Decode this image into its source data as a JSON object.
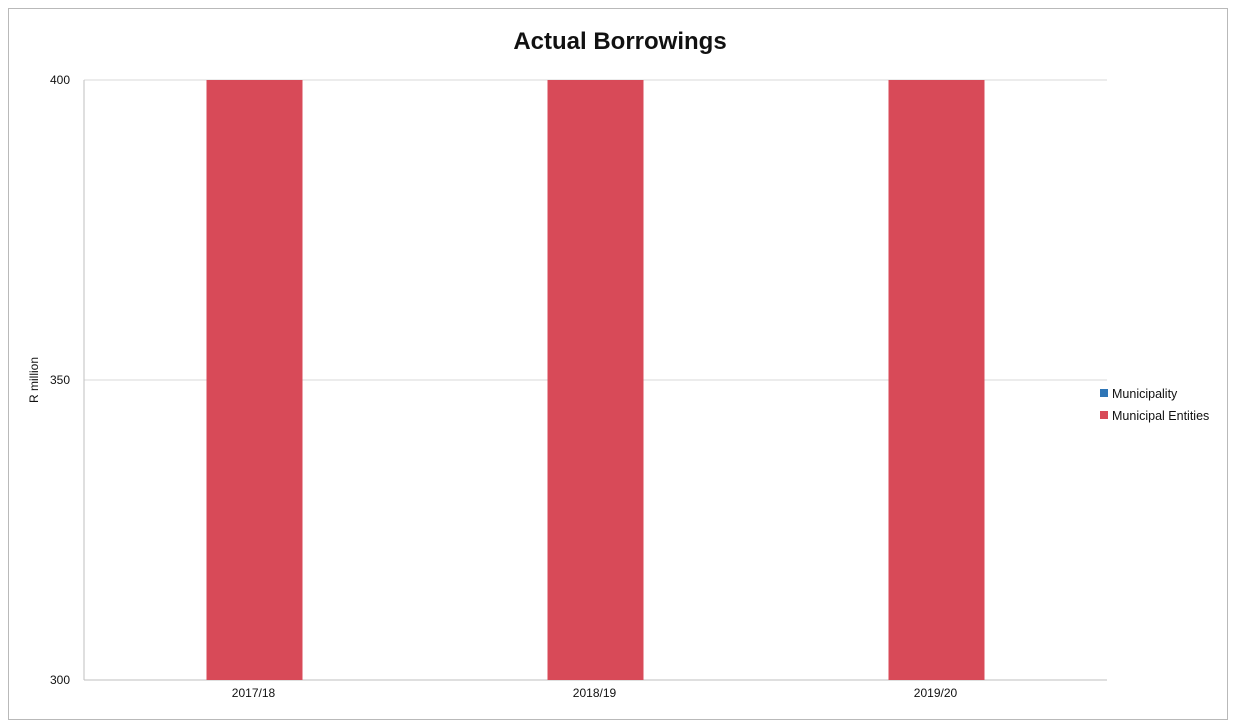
{
  "chart_data": {
    "type": "bar",
    "title": "Actual Borrowings",
    "xlabel": "",
    "ylabel": "R million",
    "categories": [
      "2017/18",
      "2018/19",
      "2019/20"
    ],
    "series": [
      {
        "name": "Municipality",
        "color": "#2e75b6",
        "values": [
          0,
          0,
          0
        ]
      },
      {
        "name": "Municipal Entities",
        "color": "#d84a58",
        "values": [
          400,
          400,
          400
        ]
      }
    ],
    "ylim": [
      300,
      400
    ],
    "yticks": [
      "300",
      "350",
      "400"
    ],
    "grid": true,
    "legend_position": "right"
  }
}
